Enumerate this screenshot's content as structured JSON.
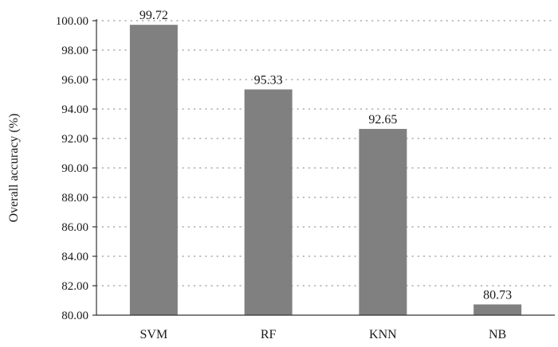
{
  "chart_data": {
    "type": "bar",
    "categories": [
      "SVM",
      "RF",
      "KNN",
      "NB"
    ],
    "values": [
      99.72,
      95.33,
      92.65,
      80.73
    ],
    "data_labels": [
      "99.72",
      "95.33",
      "92.65",
      "80.73"
    ],
    "ylabel": "Overall accuracy (%)",
    "xlabel": "",
    "ylim": [
      80,
      100
    ],
    "yticks": [
      80,
      82,
      84,
      86,
      88,
      90,
      92,
      94,
      96,
      98,
      100
    ],
    "ytick_labels": [
      "80.00",
      "82.00",
      "84.00",
      "86.00",
      "88.00",
      "90.00",
      "92.00",
      "94.00",
      "96.00",
      "98.00",
      "100.00"
    ],
    "grid": "horizontal dotted",
    "legend": "none",
    "bar_color": "#808080",
    "grid_color": "#999999",
    "axis_color": "#333333"
  }
}
